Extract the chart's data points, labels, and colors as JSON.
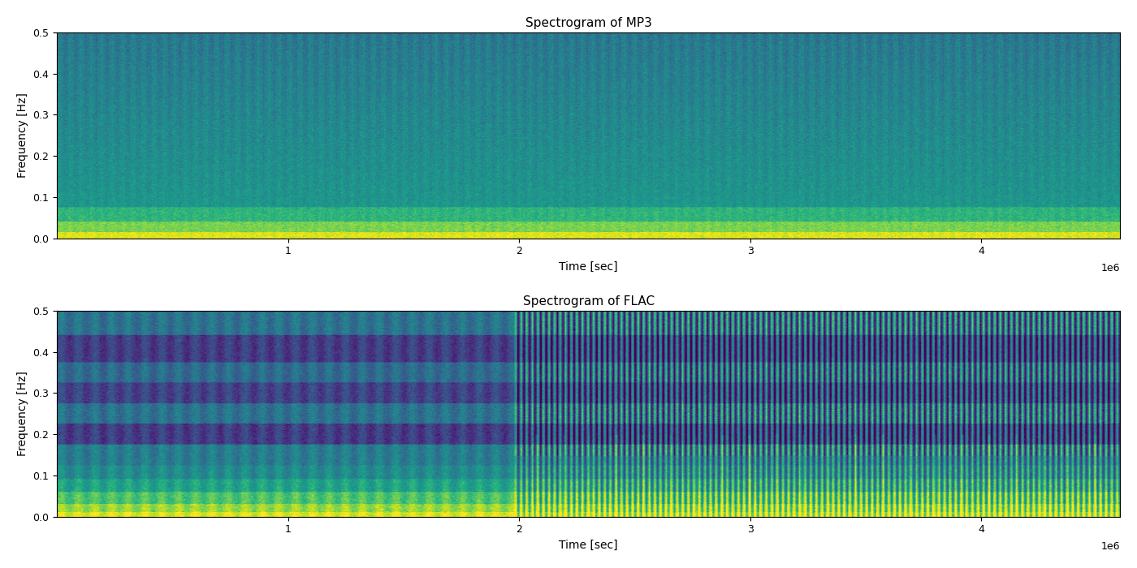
{
  "title_mp3": "Spectrogram of MP3",
  "title_flac": "Spectrogram of FLAC",
  "xlabel": "Time [sec]",
  "ylabel": "Frequency [Hz]",
  "x_max": 4600000,
  "y_max": 0.5,
  "x_ticks": [
    1000000,
    2000000,
    3000000,
    4000000
  ],
  "x_tick_labels": [
    "1",
    "2",
    "3",
    "4"
  ],
  "y_ticks": [
    0.0,
    0.1,
    0.2,
    0.3,
    0.4,
    0.5
  ],
  "colormap": "viridis",
  "figsize": [
    14,
    7
  ],
  "dpi": 100,
  "seed": 42,
  "n_time": 800,
  "n_freq": 256
}
